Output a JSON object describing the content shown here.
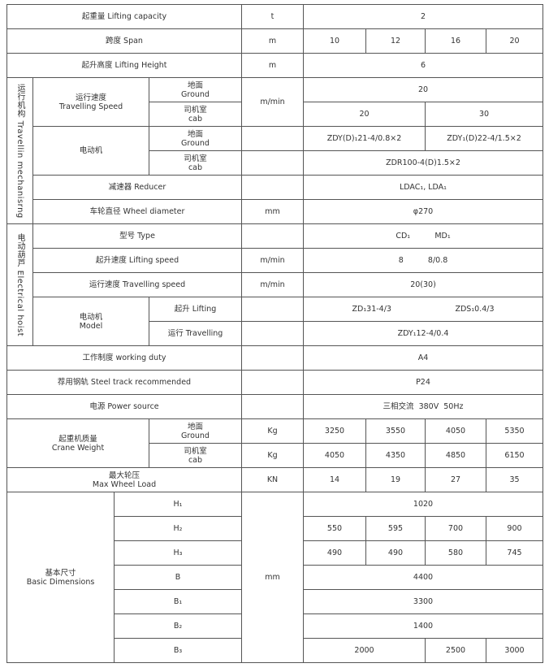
{
  "table": {
    "rows": [
      [
        "起重量 Lifting capacity",
        "t",
        "2"
      ],
      [
        "跨度 Span",
        "m",
        "10",
        "12",
        "16",
        "20"
      ],
      [
        "起升高度 Lifting Height",
        "m",
        "6"
      ],
      [
        "运行机构 Travellin mechanisrng",
        "运行速度\nTravelling Speed",
        "地面\nGround",
        "m/min",
        "20"
      ],
      [
        "司机室\ncab",
        "20",
        "30"
      ],
      [
        "电动机",
        "地面\nGround",
        "",
        "ZDY(D)₁21-4/0.8×2",
        "ZDY₁(D)22-4/1.5×2"
      ],
      [
        "司机室\ncab",
        "",
        "ZDR100-4(D)1.5×2"
      ],
      [
        "减速器 Reducer",
        "",
        "LDAC₁, LDA₁"
      ],
      [
        "车轮直径 Wheel diameter",
        "mm",
        "φ270"
      ],
      [
        "电动葫芦 Electrical hoist",
        "型号 Type",
        "",
        "CD₁          MD₁"
      ],
      [
        "起升速度 Lifting speed",
        "m/min",
        "8          8/0.8"
      ],
      [
        "运行速度 Travelling speed",
        "m/min",
        "20(30)"
      ],
      [
        "电动机\nModel",
        "起升 Lifting",
        "",
        "ZD₁31-4/3                          ZDS₁0.4/3"
      ],
      [
        "运行 Travelling",
        "",
        "ZDY₁12-4/0.4"
      ],
      [
        "工作制度 working duty",
        "",
        "A4"
      ],
      [
        "荐用钢轨 Steel track recommended",
        "",
        "P24"
      ],
      [
        "电源 Power source",
        "",
        "三相交流  380V  50Hz"
      ],
      [
        "起重机质量\nCrane Weight",
        "地面\nGround",
        "Kg",
        "3250",
        "3550",
        "4050",
        "5350"
      ],
      [
        "司机室\ncab",
        "Kg",
        "4050",
        "4350",
        "4850",
        "6150"
      ],
      [
        "最大轮压\nMax Wheel Load",
        "KN",
        "14",
        "19",
        "27",
        "35"
      ],
      [
        "基本尺寸\nBasic Dimensions",
        "H₁",
        "mm",
        "1020"
      ],
      [
        "H₂",
        "550",
        "595",
        "700",
        "900"
      ],
      [
        "H₃",
        "490",
        "490",
        "580",
        "745"
      ],
      [
        "B",
        "4400"
      ],
      [
        "B₁",
        "3300"
      ],
      [
        "B₂",
        "1400"
      ],
      [
        "B₃",
        "2000",
        "2500",
        "3000"
      ]
    ]
  }
}
